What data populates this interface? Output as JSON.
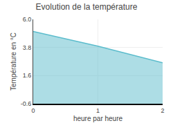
{
  "chart_data": {
    "type": "area",
    "title": "Evolution de la température",
    "x_label": "heure par heure",
    "y_label": "Température en °C",
    "x": [
      0,
      1,
      2
    ],
    "values": [
      5.05,
      3.9,
      2.6
    ],
    "color": "#5bbccc",
    "xlim": [
      0,
      2
    ],
    "xticks": [
      0,
      1,
      2
    ],
    "ylim": [
      -0.6,
      6.0
    ],
    "yticks": [
      -0.6,
      1.6,
      3.8,
      {
        "value": 6.0,
        "label": "6.0"
      }
    ],
    "grid": true
  }
}
